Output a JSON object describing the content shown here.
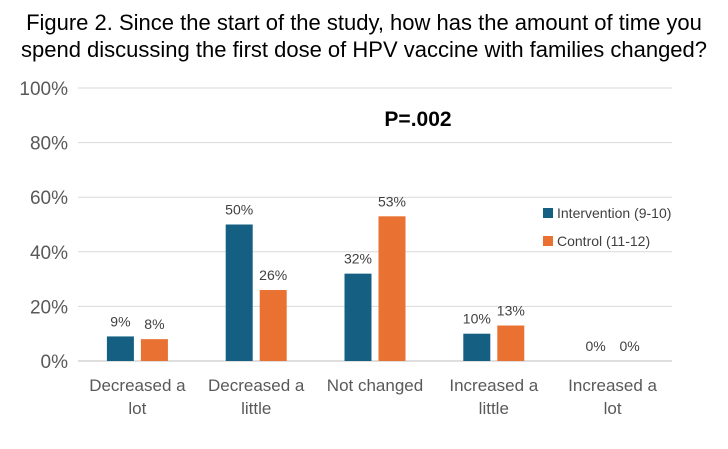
{
  "chart_data": {
    "type": "bar",
    "title_lines": [
      "Figure 2. Since the start of the study, how has the amount of time you",
      "spend discussing the first dose of HPV vaccine with families changed?"
    ],
    "categories": [
      [
        "Decreased a",
        "lot"
      ],
      [
        "Decreased a",
        "little"
      ],
      [
        "Not changed"
      ],
      [
        "Increased a",
        "little"
      ],
      [
        "Increased a",
        "lot"
      ]
    ],
    "series": [
      {
        "name": "Intervention (9-10)",
        "color": "#156082",
        "values": [
          9,
          50,
          32,
          10,
          0
        ],
        "labels": [
          "9%",
          "50%",
          "32%",
          "10%",
          "0%"
        ]
      },
      {
        "name": "Control (11-12)",
        "color": "#E97132",
        "values": [
          8,
          26,
          53,
          13,
          0
        ],
        "labels": [
          "8%",
          "26%",
          "53%",
          "13%",
          "0%"
        ]
      }
    ],
    "yticks": [
      "0%",
      "20%",
      "40%",
      "60%",
      "80%",
      "100%"
    ],
    "ylim": [
      0,
      100
    ],
    "grid": true,
    "legend_position": "right",
    "annotation": "P=.002"
  }
}
